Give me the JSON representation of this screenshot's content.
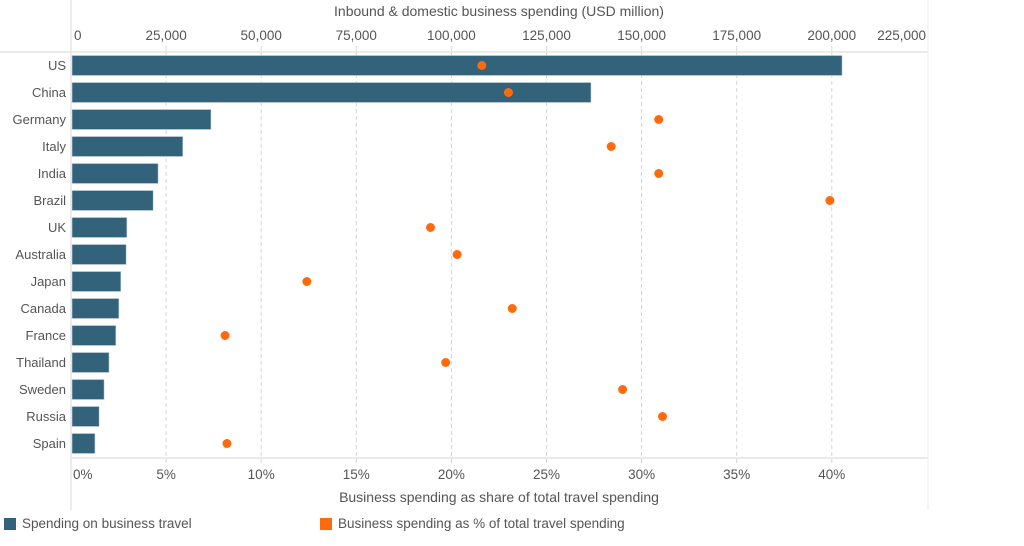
{
  "chart_data": {
    "type": "bar",
    "title": "",
    "categories": [
      "US",
      "China",
      "Germany",
      "Italy",
      "India",
      "Brazil",
      "UK",
      "Australia",
      "Japan",
      "Canada",
      "France",
      "Thailand",
      "Sweden",
      "Russia",
      "Spain"
    ],
    "series": [
      {
        "name": "Spending on business travel",
        "type": "bar",
        "axis": "top",
        "color": "#33637a",
        "values": [
          202700,
          136700,
          36800,
          29400,
          22900,
          21600,
          14700,
          14500,
          13100,
          12600,
          11800,
          10000,
          8700,
          7400,
          6300
        ]
      },
      {
        "name": "Business spending as % of total travel spending",
        "type": "scatter",
        "axis": "bottom",
        "color": "#ff6a0d",
        "values": [
          21.6,
          23.0,
          30.9,
          28.4,
          30.9,
          39.9,
          18.9,
          20.3,
          12.4,
          23.2,
          8.1,
          19.7,
          29.0,
          31.1,
          8.2
        ]
      }
    ],
    "top_axis": {
      "label": "Inbound & domestic business spending (USD million)",
      "range": [
        0,
        225000
      ],
      "ticks": [
        0,
        25000,
        50000,
        75000,
        100000,
        125000,
        150000,
        175000,
        200000,
        225000
      ],
      "tick_labels": [
        "0",
        "25,000",
        "50,000",
        "75,000",
        "100,000",
        "125,000",
        "150,000",
        "175,000",
        "200,000",
        "225,000"
      ]
    },
    "bottom_axis": {
      "label": "Business spending as share of total travel spending",
      "range": [
        0,
        45
      ],
      "ticks": [
        0,
        5,
        10,
        15,
        20,
        25,
        30,
        35,
        40
      ],
      "tick_labels": [
        "0%",
        "5%",
        "10%",
        "15%",
        "20%",
        "25%",
        "30%",
        "35%",
        "40%"
      ]
    },
    "grid": true,
    "legend": {
      "position": "bottom-left",
      "items": [
        {
          "label": "Spending on business travel",
          "color": "#33637a"
        },
        {
          "label": "Business spending as % of total travel spending",
          "color": "#ff6a0d"
        }
      ]
    }
  }
}
